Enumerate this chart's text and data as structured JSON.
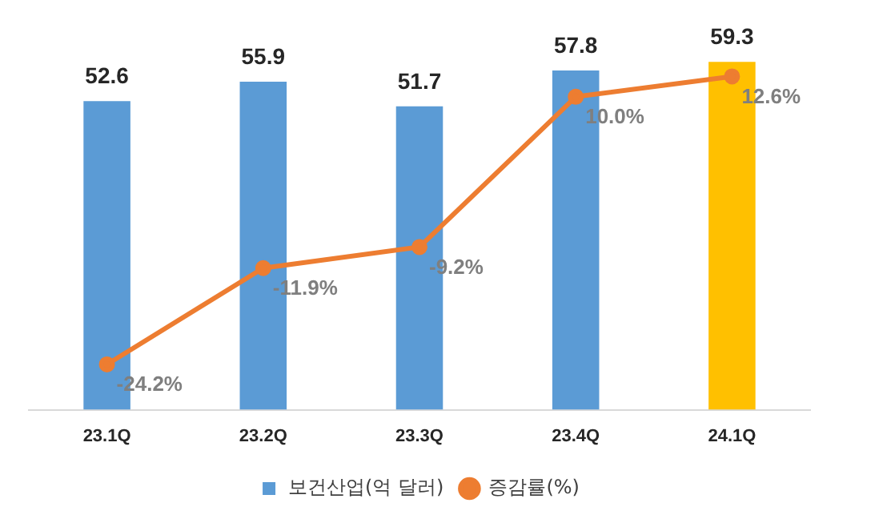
{
  "chart_data": {
    "type": "bar",
    "categories": [
      "23.1Q",
      "23.2Q",
      "23.3Q",
      "23.4Q",
      "24.1Q"
    ],
    "series": [
      {
        "name": "보건산업(억 달러)",
        "colors": [
          "#5b9bd5",
          "#5b9bd5",
          "#5b9bd5",
          "#5b9bd5",
          "#ffc000"
        ],
        "values": [
          52.6,
          55.9,
          51.7,
          57.8,
          59.3
        ],
        "value_labels": [
          "52.6",
          "55.9",
          "51.7",
          "57.8",
          "59.3"
        ]
      },
      {
        "name": "증감률(%)",
        "type": "line",
        "axis": "y2",
        "color": "#ed7d31",
        "values": [
          -24.2,
          -11.9,
          -9.2,
          10.0,
          12.6
        ],
        "value_labels": [
          "-24.2%",
          "-11.9%",
          "-9.2%",
          "10.0%",
          "12.6%"
        ]
      }
    ],
    "marker": "circle",
    "line_style": "solid",
    "grid": false,
    "legend": "bottom",
    "tick_labels": "x"
  }
}
